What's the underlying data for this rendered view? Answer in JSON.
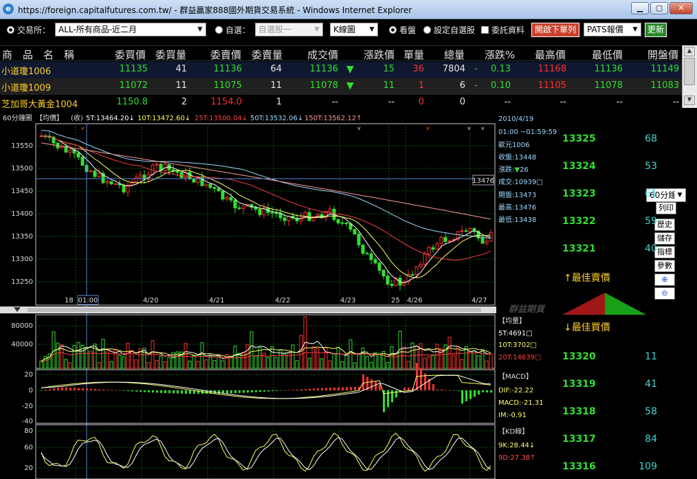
{
  "window": {
    "title": "https://foreign.capitalfutures.com.tw/ - 群益贏家888國外期貨交易系統 - Windows Internet Explorer",
    "ie_icon": "e"
  },
  "toolbar": {
    "exchange_label": "交易所：",
    "exchange_value": "ALL-所有商品-近二月",
    "watchlist_label": "自選：",
    "watchlist_value": "自選股一",
    "chart_type_value": "K線圖",
    "view_label": "看盤",
    "set_watch_label": "設定自選股",
    "order_label": "委託資料",
    "open_order_btn": "開啟下單列",
    "pats_value": "PATS報價",
    "refresh_btn": "更新"
  },
  "quote_table": {
    "headers": [
      "商　品　名　稱",
      "委買價",
      "委買量",
      "委賣價",
      "委賣量",
      "成交價",
      "漲跌價",
      "單量",
      "總量",
      "漲跌%",
      "最高價",
      "最低價",
      "開盤價"
    ],
    "rows": [
      {
        "name": "小道瓊1006",
        "bid": "11135",
        "bid_qty": "41",
        "ask": "11136",
        "ask_qty": "64",
        "last": "11136",
        "arrow": "▼",
        "chg": "15",
        "single": "36",
        "total": "7804",
        "pct_sign": "-",
        "pct": "0.13",
        "high": "11168",
        "low": "11136",
        "open": "11149"
      },
      {
        "name": "小道瓊1009",
        "bid": "11072",
        "bid_qty": "11",
        "ask": "11075",
        "ask_qty": "11",
        "last": "11078",
        "arrow": "▼",
        "chg": "11",
        "single": "1",
        "total": "6",
        "pct_sign": "-",
        "pct": "0.10",
        "high": "11105",
        "low": "11078",
        "open": "11083"
      },
      {
        "name": "芝加哥大黃金1004",
        "bid": "1150.8",
        "bid_qty": "2",
        "ask": "1154.0",
        "ask_qty": "1",
        "last": "--",
        "arrow": "",
        "chg": "--",
        "single": "0",
        "total": "0",
        "pct_sign": "",
        "pct": "--",
        "high": "--",
        "low": "--",
        "open": "--"
      }
    ]
  },
  "chart": {
    "period": "60分鐘圖",
    "price_label": "【均價】",
    "close_label": "(收)",
    "ma_labels": [
      "5T:13464.20↓",
      "10T:13472.60↓",
      "25T:13500.04↓",
      "50T:13532.06↓",
      "150T:13562.12↑"
    ],
    "y_ticks": [
      "13550",
      "13500",
      "13450",
      "13400",
      "13350",
      "13300",
      "13250"
    ],
    "x_labels": [
      "18",
      "01:00",
      "4/20",
      "4/21",
      "4/22",
      "4/23",
      "25",
      "4/26",
      "4/27"
    ],
    "crosshair_value": "13476",
    "watermark": "群益期貨",
    "info": {
      "date": "2010/4/19",
      "time": "01:00 ~01:59:59",
      "contract": "歐元1006",
      "close": "收盤:13448",
      "change_prefix": "漲跌:",
      "change_arrow": "▼",
      "change": "26",
      "volume": "成交:10939□",
      "open": "開盤:13473",
      "high": "最高:13476",
      "low": "最低:13438"
    },
    "volume": {
      "title": "【均量】",
      "ticks": [
        "80000",
        "40000"
      ],
      "ma": [
        "5T:4691□",
        "10T:3702□",
        "20T:14639□"
      ]
    },
    "macd": {
      "title": "【MACD】",
      "ticks": [
        "20",
        "0",
        "-20",
        "-40"
      ],
      "vals": [
        "DIF:-22.22",
        "MACD:-21.31",
        "IM:-0.91"
      ]
    },
    "kd": {
      "title": "【KD線】",
      "ticks": [
        "80",
        "60",
        "40",
        "20"
      ],
      "vals": [
        "9K:28.44↓",
        "9D:27.38↑"
      ]
    }
  },
  "side_buttons": [
    "歷史",
    "儲存",
    "指標",
    "參數",
    "⊕",
    "⊖"
  ],
  "period_select": "60分鐘",
  "print_btn": "列印",
  "order_book": {
    "asks": [
      {
        "price": "13325",
        "vol": "68"
      },
      {
        "price": "13324",
        "vol": "53"
      },
      {
        "price": "13323",
        "vol": "61"
      },
      {
        "price": "13322",
        "vol": "59"
      },
      {
        "price": "13321",
        "vol": "40"
      }
    ],
    "best_ask_label": "↑最佳賣價",
    "best_bid_label": "↓最佳買價",
    "bids": [
      {
        "price": "13320",
        "vol": "11"
      },
      {
        "price": "13319",
        "vol": "41"
      },
      {
        "price": "13318",
        "vol": "58"
      },
      {
        "price": "13317",
        "vol": "84"
      },
      {
        "price": "13316",
        "vol": "109"
      }
    ]
  },
  "colors": {
    "up": "#ff3030",
    "down": "#33dd33",
    "ma5": "#ffffff",
    "ma10": "#ffff66",
    "ma25": "#ff4040",
    "ma50": "#9fd9ff",
    "ma150": "#ff9a9a",
    "grid": "#0b5a0b"
  }
}
